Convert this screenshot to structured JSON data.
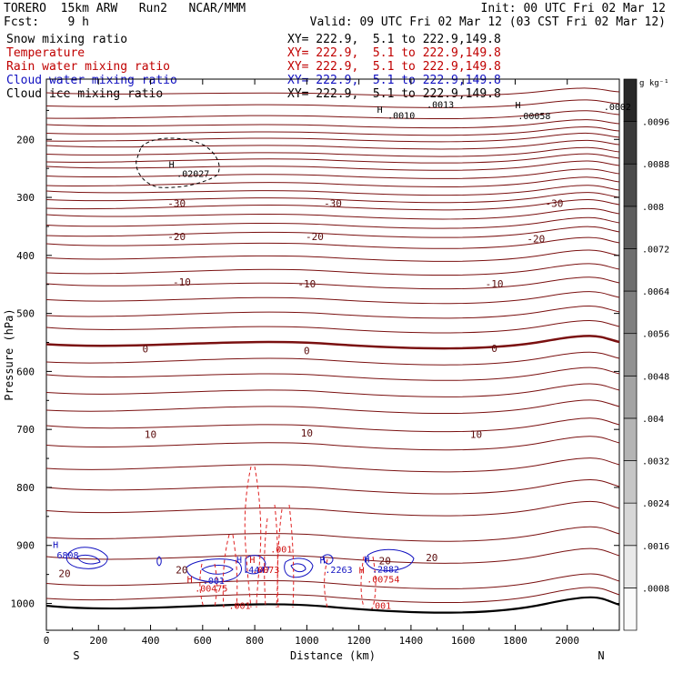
{
  "header": {
    "title_left": "TORERO  15km ARW   Run2   NCAR/MMM",
    "init": "Init: 00 UTC Fri 02 Mar 12",
    "fcst": "Fcst:    9 h",
    "valid": "Valid: 09 UTC Fri 02 Mar 12 (03 CST Fri 02 Mar 12)"
  },
  "fields": [
    {
      "name": "Snow mixing ratio",
      "xy": "",
      "color": "#000000"
    },
    {
      "name": "Temperature",
      "xy": "XY= 222.9,  5.1 to 222.9,149.8",
      "color": "#c00000"
    },
    {
      "name": "Rain water mixing ratio",
      "xy": "XY= 222.9,  5.1 to 222.9,149.8",
      "color": "#c00000"
    },
    {
      "name": "Cloud water mixing ratio",
      "xy": "XY= 222.9,  5.1 to 222.9,149.8",
      "color": "#1010c0"
    },
    {
      "name": "Cloud ice mixing ratio",
      "xy": "XY= 222.9,  5.1 to 222.9,149.8",
      "color": "#000000"
    }
  ],
  "first_xy": "XY= 222.9,  5.1 to 222.9,149.8",
  "chart_data": {
    "type": "contour cross-section",
    "xlabel": "Distance (km)",
    "ylabel": "Pressure (hPa)",
    "x_ticks": [
      "0",
      "200",
      "400",
      "600",
      "800",
      "1000",
      "1200",
      "1400",
      "1600",
      "1800",
      "2000"
    ],
    "y_ticks": [
      "200",
      "300",
      "400",
      "500",
      "600",
      "700",
      "800",
      "900",
      "1000"
    ],
    "x_end_labels": {
      "left": "S",
      "right": "N"
    },
    "xlim": [
      0,
      2200
    ],
    "ylim": [
      1050,
      100
    ],
    "temperature_labels": [
      {
        "text": "-30",
        "x": 500,
        "p": 310
      },
      {
        "text": "-30",
        "x": 1100,
        "p": 310
      },
      {
        "text": "-30",
        "x": 1950,
        "p": 310
      },
      {
        "text": "-20",
        "x": 500,
        "p": 367
      },
      {
        "text": "-20",
        "x": 1030,
        "p": 367
      },
      {
        "text": "-20",
        "x": 1880,
        "p": 371
      },
      {
        "text": "-10",
        "x": 520,
        "p": 446
      },
      {
        "text": "-10",
        "x": 1000,
        "p": 449
      },
      {
        "text": "-10",
        "x": 1720,
        "p": 449
      },
      {
        "text": "0",
        "x": 380,
        "p": 561
      },
      {
        "text": "0",
        "x": 1000,
        "p": 564
      },
      {
        "text": "0",
        "x": 1720,
        "p": 560
      },
      {
        "text": "10",
        "x": 400,
        "p": 708
      },
      {
        "text": "10",
        "x": 1000,
        "p": 706
      },
      {
        "text": "10",
        "x": 1650,
        "p": 708
      },
      {
        "text": "20",
        "x": 70,
        "p": 948
      },
      {
        "text": "20",
        "x": 520,
        "p": 942
      },
      {
        "text": "20",
        "x": 1300,
        "p": 926
      },
      {
        "text": "20",
        "x": 1480,
        "p": 921
      }
    ],
    "ice_labels": [
      {
        "text": "H",
        "x": 470,
        "p": 243
      },
      {
        "text": ".02027",
        "x": 500,
        "p": 258
      },
      {
        "text": ".0002",
        "x": 2140,
        "p": 143
      },
      {
        "text": ".00058",
        "x": 1810,
        "p": 159
      },
      {
        "text": ".0010",
        "x": 1310,
        "p": 158
      },
      {
        "text": "H",
        "x": 1270,
        "p": 148
      },
      {
        "text": ".0013",
        "x": 1460,
        "p": 139
      },
      {
        "text": "H",
        "x": 1800,
        "p": 140
      }
    ],
    "cloud_water_labels": [
      {
        "text": "H",
        "x": 25,
        "p": 898
      },
      {
        "text": "6808",
        "x": 40,
        "p": 916
      },
      {
        "text": "H",
        "x": 730,
        "p": 924
      },
      {
        "text": ".4447",
        "x": 755,
        "p": 941
      },
      {
        "text": ".001",
        "x": 600,
        "p": 960
      },
      {
        "text": "H",
        "x": 1050,
        "p": 925
      },
      {
        "text": ".2263",
        "x": 1070,
        "p": 941
      },
      {
        "text": "H",
        "x": 1220,
        "p": 923
      },
      {
        "text": ".2882",
        "x": 1250,
        "p": 940
      }
    ],
    "rain_labels": [
      {
        "text": "H",
        "x": 780,
        "p": 924
      },
      {
        "text": ".0073",
        "x": 790,
        "p": 941
      },
      {
        "text": ".001",
        "x": 860,
        "p": 906
      },
      {
        "text": "H",
        "x": 540,
        "p": 958
      },
      {
        "text": ".00475",
        "x": 570,
        "p": 973
      },
      {
        "text": "H",
        "x": 1200,
        "p": 942
      },
      {
        "text": ".00754",
        "x": 1230,
        "p": 958
      },
      {
        "text": ".001",
        "x": 700,
        "p": 1003
      },
      {
        "text": ".001",
        "x": 1240,
        "p": 1003
      }
    ],
    "colorbar": {
      "unit": "g kg⁻¹",
      "labels": [
        ".0096",
        ".0088",
        ".008",
        ".0072",
        ".0064",
        ".0056",
        ".0048",
        ".004",
        ".0032",
        ".0024",
        ".0016",
        ".0008"
      ],
      "min": 0.0,
      "max": 0.0104,
      "step": 0.0008
    }
  }
}
